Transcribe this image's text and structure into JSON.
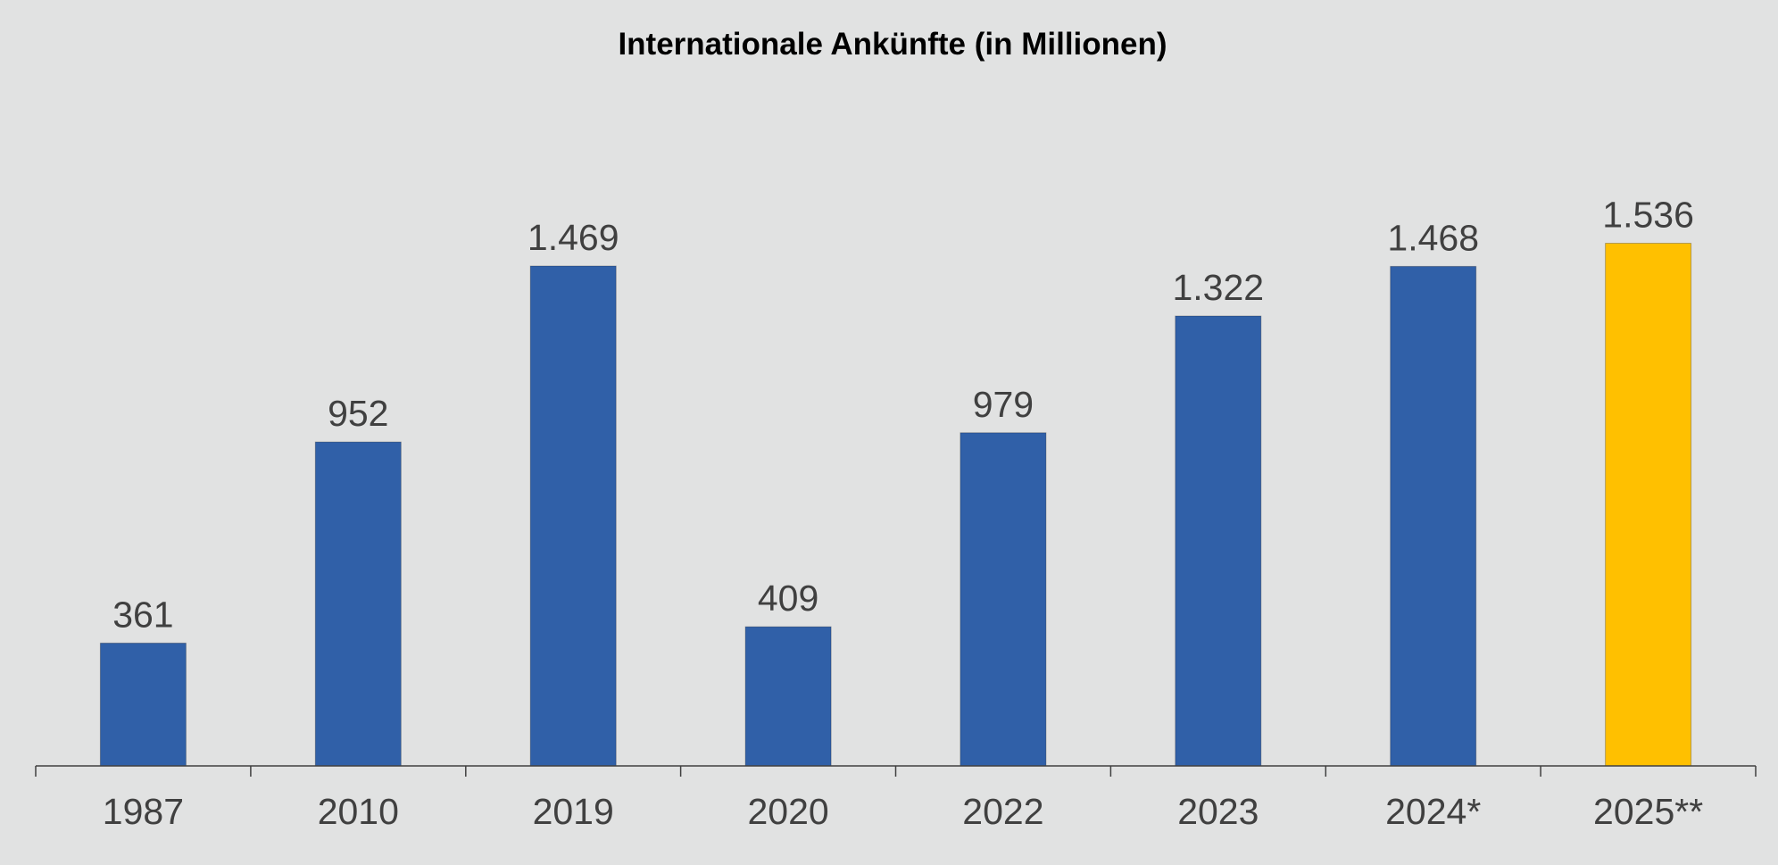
{
  "chart_data": {
    "type": "bar",
    "title": "Internationale Ankünfte (in Millionen)",
    "categories": [
      "1987",
      "2010",
      "2019",
      "2020",
      "2022",
      "2023",
      "2024*",
      "2025**"
    ],
    "values": [
      361,
      952,
      1469,
      409,
      979,
      1322,
      1468,
      1536
    ],
    "value_labels": [
      "361",
      "952",
      "1.469",
      "409",
      "979",
      "1.322",
      "1.468",
      "1.536"
    ],
    "xlabel": "",
    "ylabel": "",
    "ylim": [
      0,
      2200
    ],
    "grid": false,
    "legend": "none",
    "colors": {
      "bar": "#3060a8",
      "highlight": "#ffc000",
      "highlight_index": 7,
      "axis": "#404040",
      "background": "#e1e2e2"
    }
  }
}
